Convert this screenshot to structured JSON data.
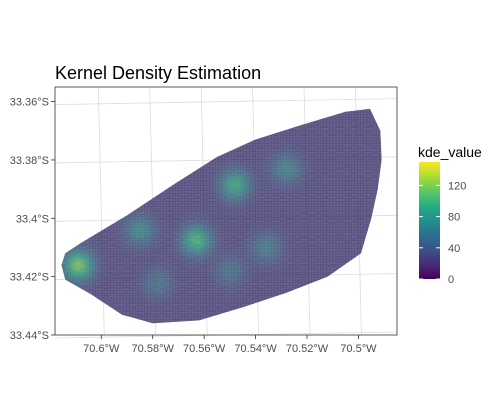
{
  "chart_data": {
    "type": "heatmap",
    "title": "Kernel Density Estimation",
    "xlabel": "",
    "ylabel": "",
    "x_ticks": [
      {
        "value": -70.6,
        "label": "70.6°W"
      },
      {
        "value": -70.58,
        "label": "70.58°W"
      },
      {
        "value": -70.56,
        "label": "70.56°W"
      },
      {
        "value": -70.54,
        "label": "70.54°W"
      },
      {
        "value": -70.52,
        "label": "70.52°W"
      },
      {
        "value": -70.5,
        "label": "70.5°W"
      }
    ],
    "y_ticks": [
      {
        "value": -33.36,
        "label": "33.36°S"
      },
      {
        "value": -33.38,
        "label": "33.38°S"
      },
      {
        "value": -33.4,
        "label": "33.4°S"
      },
      {
        "value": -33.42,
        "label": "33.42°S"
      },
      {
        "value": -33.44,
        "label": "33.44°S"
      }
    ],
    "xlim": [
      -70.618,
      -70.485
    ],
    "ylim": [
      -33.44,
      -33.355
    ],
    "region_outline": [
      [
        -70.608,
        -33.4085
      ],
      [
        -70.59,
        -33.399
      ],
      [
        -70.572,
        -33.3885
      ],
      [
        -70.555,
        -33.379
      ],
      [
        -70.54,
        -33.373
      ],
      [
        -70.522,
        -33.368
      ],
      [
        -70.505,
        -33.3635
      ],
      [
        -70.4955,
        -33.3625
      ],
      [
        -70.4915,
        -33.37
      ],
      [
        -70.491,
        -33.38
      ],
      [
        -70.4925,
        -33.39
      ],
      [
        -70.495,
        -33.4
      ],
      [
        -70.499,
        -33.412
      ],
      [
        -70.512,
        -33.42
      ],
      [
        -70.528,
        -33.4255
      ],
      [
        -70.545,
        -33.4305
      ],
      [
        -70.562,
        -33.435
      ],
      [
        -70.58,
        -33.436
      ],
      [
        -70.592,
        -33.433
      ],
      [
        -70.604,
        -33.426
      ],
      [
        -70.614,
        -33.421
      ],
      [
        -70.6155,
        -33.416
      ],
      [
        -70.614,
        -33.412
      ]
    ],
    "base_value": 25,
    "hotspots": [
      {
        "lon": -70.609,
        "lat": -33.416,
        "value": 130
      },
      {
        "lon": -70.563,
        "lat": -33.4075,
        "value": 110
      },
      {
        "lon": -70.548,
        "lat": -33.3885,
        "value": 100
      },
      {
        "lon": -70.528,
        "lat": -33.383,
        "value": 70
      },
      {
        "lon": -70.585,
        "lat": -33.404,
        "value": 75
      },
      {
        "lon": -70.536,
        "lat": -33.41,
        "value": 65
      },
      {
        "lon": -70.578,
        "lat": -33.422,
        "value": 55
      },
      {
        "lon": -70.55,
        "lat": -33.418,
        "value": 55
      }
    ],
    "legend": {
      "title": "kde_value",
      "ticks": [
        0,
        40,
        80,
        120
      ],
      "range": [
        0,
        150
      ],
      "placement": "right"
    },
    "colormap": "viridis",
    "grid": true
  }
}
